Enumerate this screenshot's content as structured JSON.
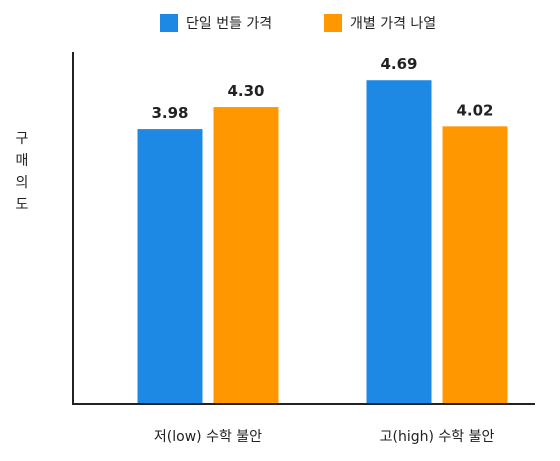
{
  "chart_data": {
    "type": "bar",
    "title": "",
    "xlabel": "",
    "ylabel": "구매의도",
    "categories": [
      "저(low) 수학 불안",
      "고(high) 수학 불안"
    ],
    "series": [
      {
        "name": "단일 번들 가격",
        "values": [
          3.98,
          4.69
        ],
        "color": "#1E88E5"
      },
      {
        "name": "개별 가격 나열",
        "values": [
          4.3,
          4.02
        ],
        "color": "#FF9800"
      }
    ],
    "data_labels": [
      [
        "3.98",
        "4.69"
      ],
      [
        "4.30",
        "4.02"
      ]
    ],
    "ylim": [
      0,
      5.1
    ],
    "grid": false,
    "legend_position": "top-center"
  }
}
